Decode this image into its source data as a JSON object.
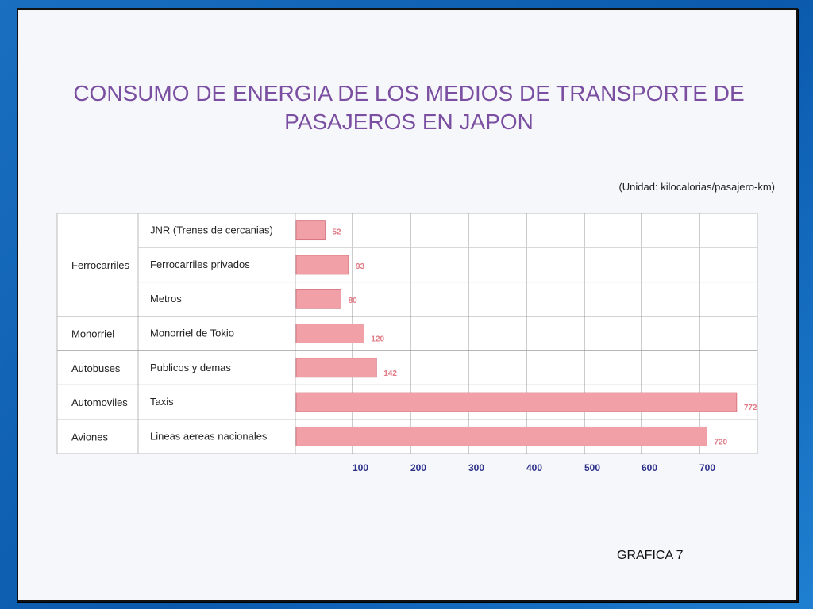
{
  "chart_data": {
    "type": "bar",
    "orientation": "horizontal",
    "title": "CONSUMO DE ENERGIA DE LOS MEDIOS DE TRANSPORTE DE PASAJEROS EN JAPON",
    "unit_note": "(Unidad: kilocalorias/pasajero-km)",
    "groups": [
      {
        "name": "Ferrocarriles",
        "categories": [
          "JNR (Trenes de cercanias)",
          "Ferrocarriles privados",
          "Metros"
        ]
      },
      {
        "name": "Monorriel",
        "categories": [
          "Monorriel de Tokio"
        ]
      },
      {
        "name": "Autobuses",
        "categories": [
          "Publicos y demas"
        ]
      },
      {
        "name": "Automoviles",
        "categories": [
          "Taxis"
        ]
      },
      {
        "name": "Aviones",
        "categories": [
          "Lineas aereas nacionales"
        ]
      }
    ],
    "categories": [
      "JNR (Trenes de cercanias)",
      "Ferrocarriles privados",
      "Metros",
      "Monorriel de Tokio",
      "Publicos y demas",
      "Taxis",
      "Lineas aereas nacionales"
    ],
    "values": [
      52,
      93,
      80,
      120,
      142,
      772,
      720
    ],
    "xticks": [
      100,
      200,
      300,
      400,
      500,
      600,
      700
    ],
    "xlim": [
      0,
      800
    ],
    "bar_color": "#f0a0a6",
    "bar_border": "#d06a76",
    "label_color": "#e07a86",
    "tick_color": "#2b2f8a",
    "title_color": "#7a4ea0",
    "grid": true
  },
  "footer": {
    "label": "GRAFICA 7"
  }
}
